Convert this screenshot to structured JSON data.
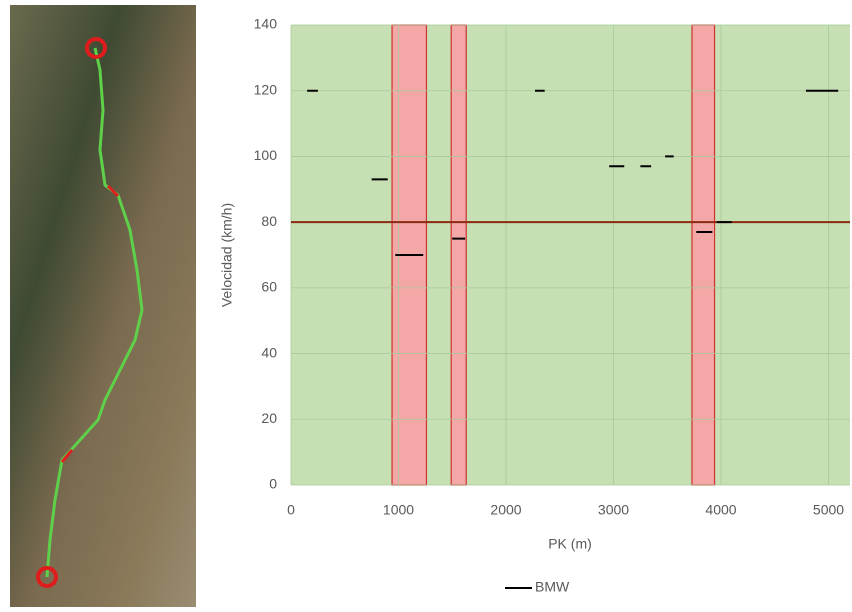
{
  "chart_data": {
    "type": "line",
    "x_label": "PK (m)",
    "y_label": "Velocidad (km/h)",
    "xlim": [
      0,
      5200
    ],
    "xticks": [
      0,
      1000,
      2000,
      3000,
      4000,
      5000
    ],
    "ylim": [
      0,
      140
    ],
    "yticks": [
      0,
      20,
      40,
      60,
      80,
      100,
      120,
      140
    ],
    "grid": true,
    "background": "#c6e0b4",
    "zones": [
      [
        940,
        1260
      ],
      [
        1490,
        1630
      ],
      [
        3730,
        3940
      ]
    ],
    "zone_color": "#f4a7a7",
    "limit_line": {
      "value": 80,
      "color": "#8b2a10"
    },
    "legend": "bottom",
    "series": [
      {
        "name": "BMW",
        "color": "#000000",
        "x": [
          150,
          250,
          null,
          750,
          900,
          null,
          970,
          1230,
          null,
          1500,
          1620,
          null,
          2270,
          2360,
          null,
          2960,
          3100,
          null,
          3250,
          3350,
          null,
          3480,
          3560,
          null,
          3770,
          3920,
          null,
          3960,
          4100,
          null,
          4790,
          5090
        ],
        "values": [
          120,
          120,
          null,
          93,
          93,
          null,
          70,
          70,
          null,
          75,
          75,
          null,
          120,
          120,
          null,
          97,
          97,
          null,
          97,
          97,
          null,
          100,
          100,
          null,
          77,
          77,
          null,
          80,
          80,
          null,
          120,
          120
        ]
      }
    ]
  }
}
